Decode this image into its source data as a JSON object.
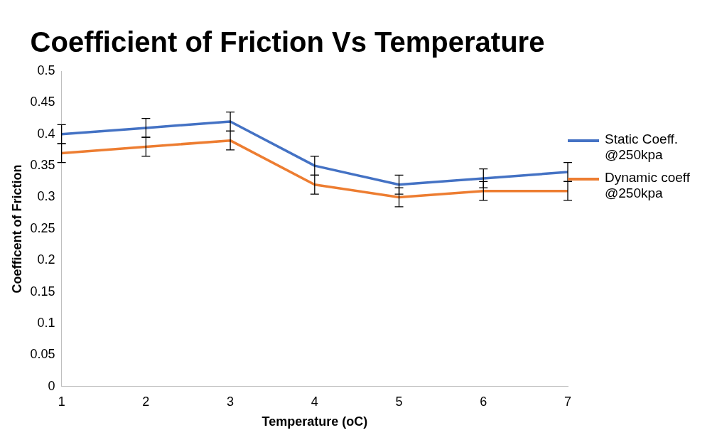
{
  "chart_data": {
    "type": "line",
    "title": "Coefficient of Friction Vs Temperature",
    "xlabel": "Temperature (oC)",
    "ylabel": "Coefficent of Friction",
    "categories": [
      "1",
      "2",
      "3",
      "4",
      "5",
      "6",
      "7"
    ],
    "series": [
      {
        "name": "Static Coeff. @250kpa",
        "color": "#4472c4",
        "values": [
          0.4,
          0.41,
          0.42,
          0.35,
          0.32,
          0.33,
          0.34
        ],
        "errors": [
          0.015,
          0.015,
          0.015,
          0.015,
          0.015,
          0.015,
          0.015
        ]
      },
      {
        "name": "Dynamic coeff @250kpa",
        "color": "#ed7d31",
        "values": [
          0.37,
          0.38,
          0.39,
          0.32,
          0.3,
          0.31,
          0.31
        ],
        "errors": [
          0.015,
          0.015,
          0.015,
          0.015,
          0.015,
          0.015,
          0.015
        ]
      }
    ],
    "ylim": [
      0,
      0.5
    ],
    "yticks": [
      0,
      0.05,
      0.1,
      0.15,
      0.2,
      0.25,
      0.3,
      0.35,
      0.4,
      0.45,
      0.5
    ],
    "grid": false,
    "legend": "right",
    "marker": "none",
    "line_style": "solid"
  }
}
